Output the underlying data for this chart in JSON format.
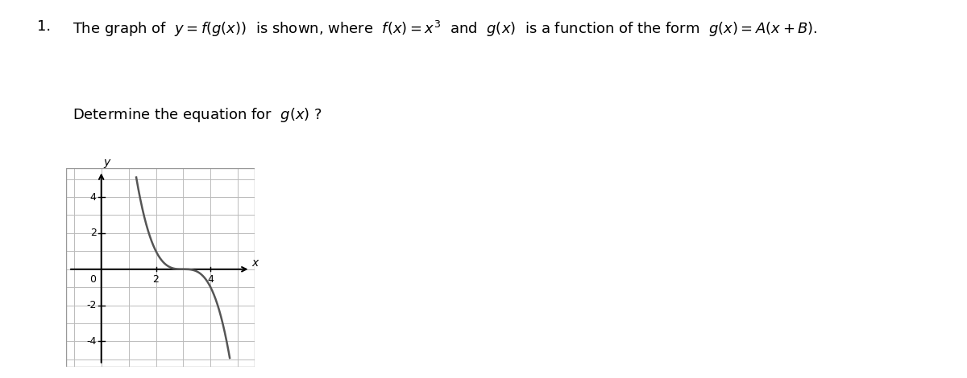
{
  "title_number": "1.",
  "text_line1": "The graph of  $y = f(g(x))$  is shown, where  $f(x) = x^3$  and  $g(x)$  is a function of the form  $g(x) = A(x + B)$.",
  "text_line2": "Determine the equation for  $g(x)$ ?",
  "xlim": [
    -1,
    5
  ],
  "ylim": [
    -5,
    5
  ],
  "x_ticks": [
    2,
    4
  ],
  "y_ticks": [
    -4,
    -2,
    2,
    4
  ],
  "curve_color": "#555555",
  "grid_color": "#bbbbbb",
  "axis_color": "#000000",
  "graph_box_color": "#eaeaea",
  "curve_A": -1,
  "curve_B": -3,
  "text_color": "#000000",
  "fig_width": 12.0,
  "fig_height": 4.7
}
